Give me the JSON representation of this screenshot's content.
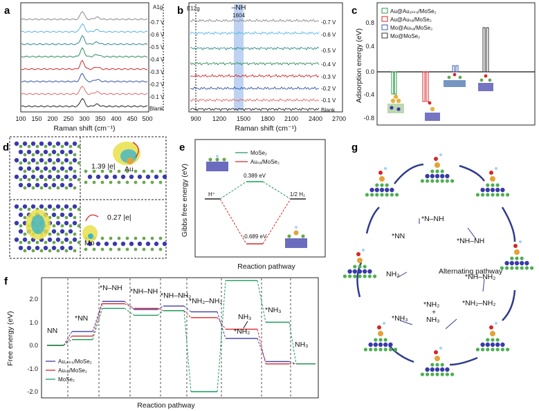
{
  "panels": {
    "a": {
      "label": "a",
      "peaks": [
        "A1g",
        "E12g"
      ],
      "voltages": [
        "-0.7 V",
        "-0.6 V",
        "-0.5 V",
        "-0.4 V",
        "-0.3 V",
        "-0.2 V",
        "-0.1 V",
        "Blank"
      ],
      "xticks": [
        "100",
        "150",
        "200",
        "250",
        "300",
        "350",
        "400",
        "450",
        "500"
      ],
      "xlabel": "Raman shift (cm⁻¹)",
      "colors": [
        "#888888",
        "#56b4e9",
        "#2a8a8a",
        "#2e8b57",
        "#d62728",
        "#3355aa",
        "#e06666",
        "#222222"
      ]
    },
    "b": {
      "label": "b",
      "annot_group": "–NH",
      "annot_value": "1604",
      "voltages": [
        "-0.7 V",
        "-0.6 V",
        "-0.5 V",
        "-0.4 V",
        "-0.3 V",
        "-0.2 V",
        "-0.1 V",
        "Blank"
      ],
      "xticks": [
        "900",
        "1200",
        "1500",
        "1800",
        "2100",
        "2400",
        "2700"
      ],
      "xlabel": "Raman shift (cm⁻¹)"
    },
    "c": {
      "label": "c",
      "ylabel": "Adsorption energy (eV)",
      "yticks": [
        "0.8",
        "0.4",
        "0.0",
        "-0.4",
        "-0.8"
      ],
      "legend": [
        "Au@Au₁ₖₖ₆/MoSe₂",
        "Au@Auₛₐ/MoSe₂",
        "Mo@Auₛₐ/MoSe₂",
        "Mo@MoSe₂"
      ]
    },
    "d": {
      "label": "d",
      "charge_top": "1.39 |e|",
      "charge_top_atom": "Au",
      "charge_bottom": "0.27 |e|",
      "charge_bottom_atom": "Mo"
    },
    "e": {
      "label": "e",
      "ylabel": "Gibbs free energy (eV)",
      "xlabel": "Reaction pathway",
      "legend_mose2": "MoSe₂",
      "legend_ausa": "Auₛₐ/MoSe₂",
      "start_label": "H⁺",
      "end_label": "1/2 H₂",
      "value_mose2": "0.389 eV",
      "value_ausa": "-0.689 eV"
    },
    "f": {
      "label": "f",
      "ylabel": "Free energy (eV)",
      "xlabel": "Reaction pathway",
      "yticks": [
        "2.0",
        "1.0",
        "0.0",
        "-1.0",
        "-2.0"
      ],
      "step_labels": [
        "NN",
        "*NN",
        "*N–NH",
        "*NH–NH",
        "*NH–NH₂",
        "*NH₂–NH₂",
        "*NH₂",
        "*NH₃",
        "NH₃"
      ],
      "legend": [
        "Au₁ₖₖ₆/MoSe₂",
        "Auₛₐ/MoSe₂",
        "MoSe₂"
      ],
      "extra_labels": [
        "NH₃",
        "*NH₃"
      ]
    },
    "g": {
      "label": "g",
      "center": "Alternating pathway",
      "cycle_labels": [
        "*N–NH",
        "*NN",
        "*NH–NH",
        "*NH–NH₂",
        "*NH₂–NH₂",
        "*NH₂",
        "+",
        "NH₃",
        "*NH₃",
        "NH₃"
      ]
    }
  },
  "colors": {
    "green": "#1a9a5a",
    "red": "#d62728",
    "blue": "#3a3aaa",
    "highlight": "#a8c4ee"
  }
}
